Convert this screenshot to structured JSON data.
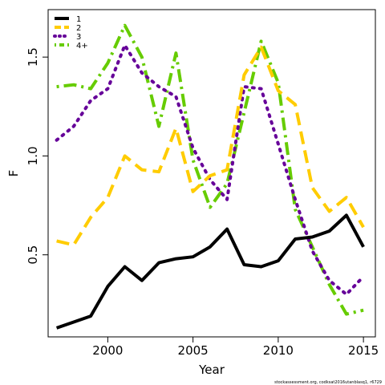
{
  "chart_data": {
    "type": "line",
    "xlabel": "Year",
    "ylabel": "F",
    "xlim": [
      1996.5,
      2015.7
    ],
    "ylim": [
      0.085,
      1.74
    ],
    "x_ticks": [
      2000,
      2005,
      2010,
      2015
    ],
    "y_ticks": [
      0.5,
      1.0,
      1.5
    ],
    "x_tick_labels": [
      "2000",
      "2005",
      "2010",
      "2015"
    ],
    "y_tick_labels": [
      "0.5",
      "1.0",
      "1.5"
    ],
    "grid": false,
    "legend_position": "top-left",
    "x": [
      1997,
      1998,
      1999,
      2000,
      2001,
      2002,
      2003,
      2004,
      2005,
      2006,
      2007,
      2008,
      2009,
      2010,
      2011,
      2012,
      2013,
      2014,
      2015
    ],
    "series": [
      {
        "name": "1",
        "color": "#000000",
        "dash": "solid",
        "values": [
          0.13,
          0.16,
          0.19,
          0.34,
          0.44,
          0.37,
          0.46,
          0.48,
          0.49,
          0.54,
          0.63,
          0.45,
          0.44,
          0.47,
          0.58,
          0.59,
          0.62,
          0.7,
          0.54
        ]
      },
      {
        "name": "2",
        "color": "#ffcc00",
        "dash": "dashed",
        "values": [
          0.57,
          0.55,
          0.69,
          0.79,
          1.0,
          0.93,
          0.92,
          1.14,
          0.82,
          0.9,
          0.93,
          1.41,
          1.55,
          1.33,
          1.26,
          0.84,
          0.72,
          0.79,
          0.64
        ]
      },
      {
        "name": "3",
        "color": "#660099",
        "dash": "dotted",
        "values": [
          1.08,
          1.15,
          1.28,
          1.34,
          1.56,
          1.42,
          1.35,
          1.3,
          1.04,
          0.88,
          0.78,
          1.35,
          1.34,
          1.06,
          0.78,
          0.52,
          0.37,
          0.3,
          0.39
        ]
      },
      {
        "name": "4+",
        "color": "#66cc00",
        "dash": "dashdot",
        "values": [
          1.35,
          1.36,
          1.34,
          1.47,
          1.66,
          1.5,
          1.15,
          1.52,
          0.98,
          0.74,
          0.86,
          1.22,
          1.58,
          1.37,
          0.73,
          0.54,
          0.35,
          0.2,
          0.22
        ]
      }
    ]
  },
  "footer_text": "stockassessment.org, codksat2016utanblasq1, r6729"
}
